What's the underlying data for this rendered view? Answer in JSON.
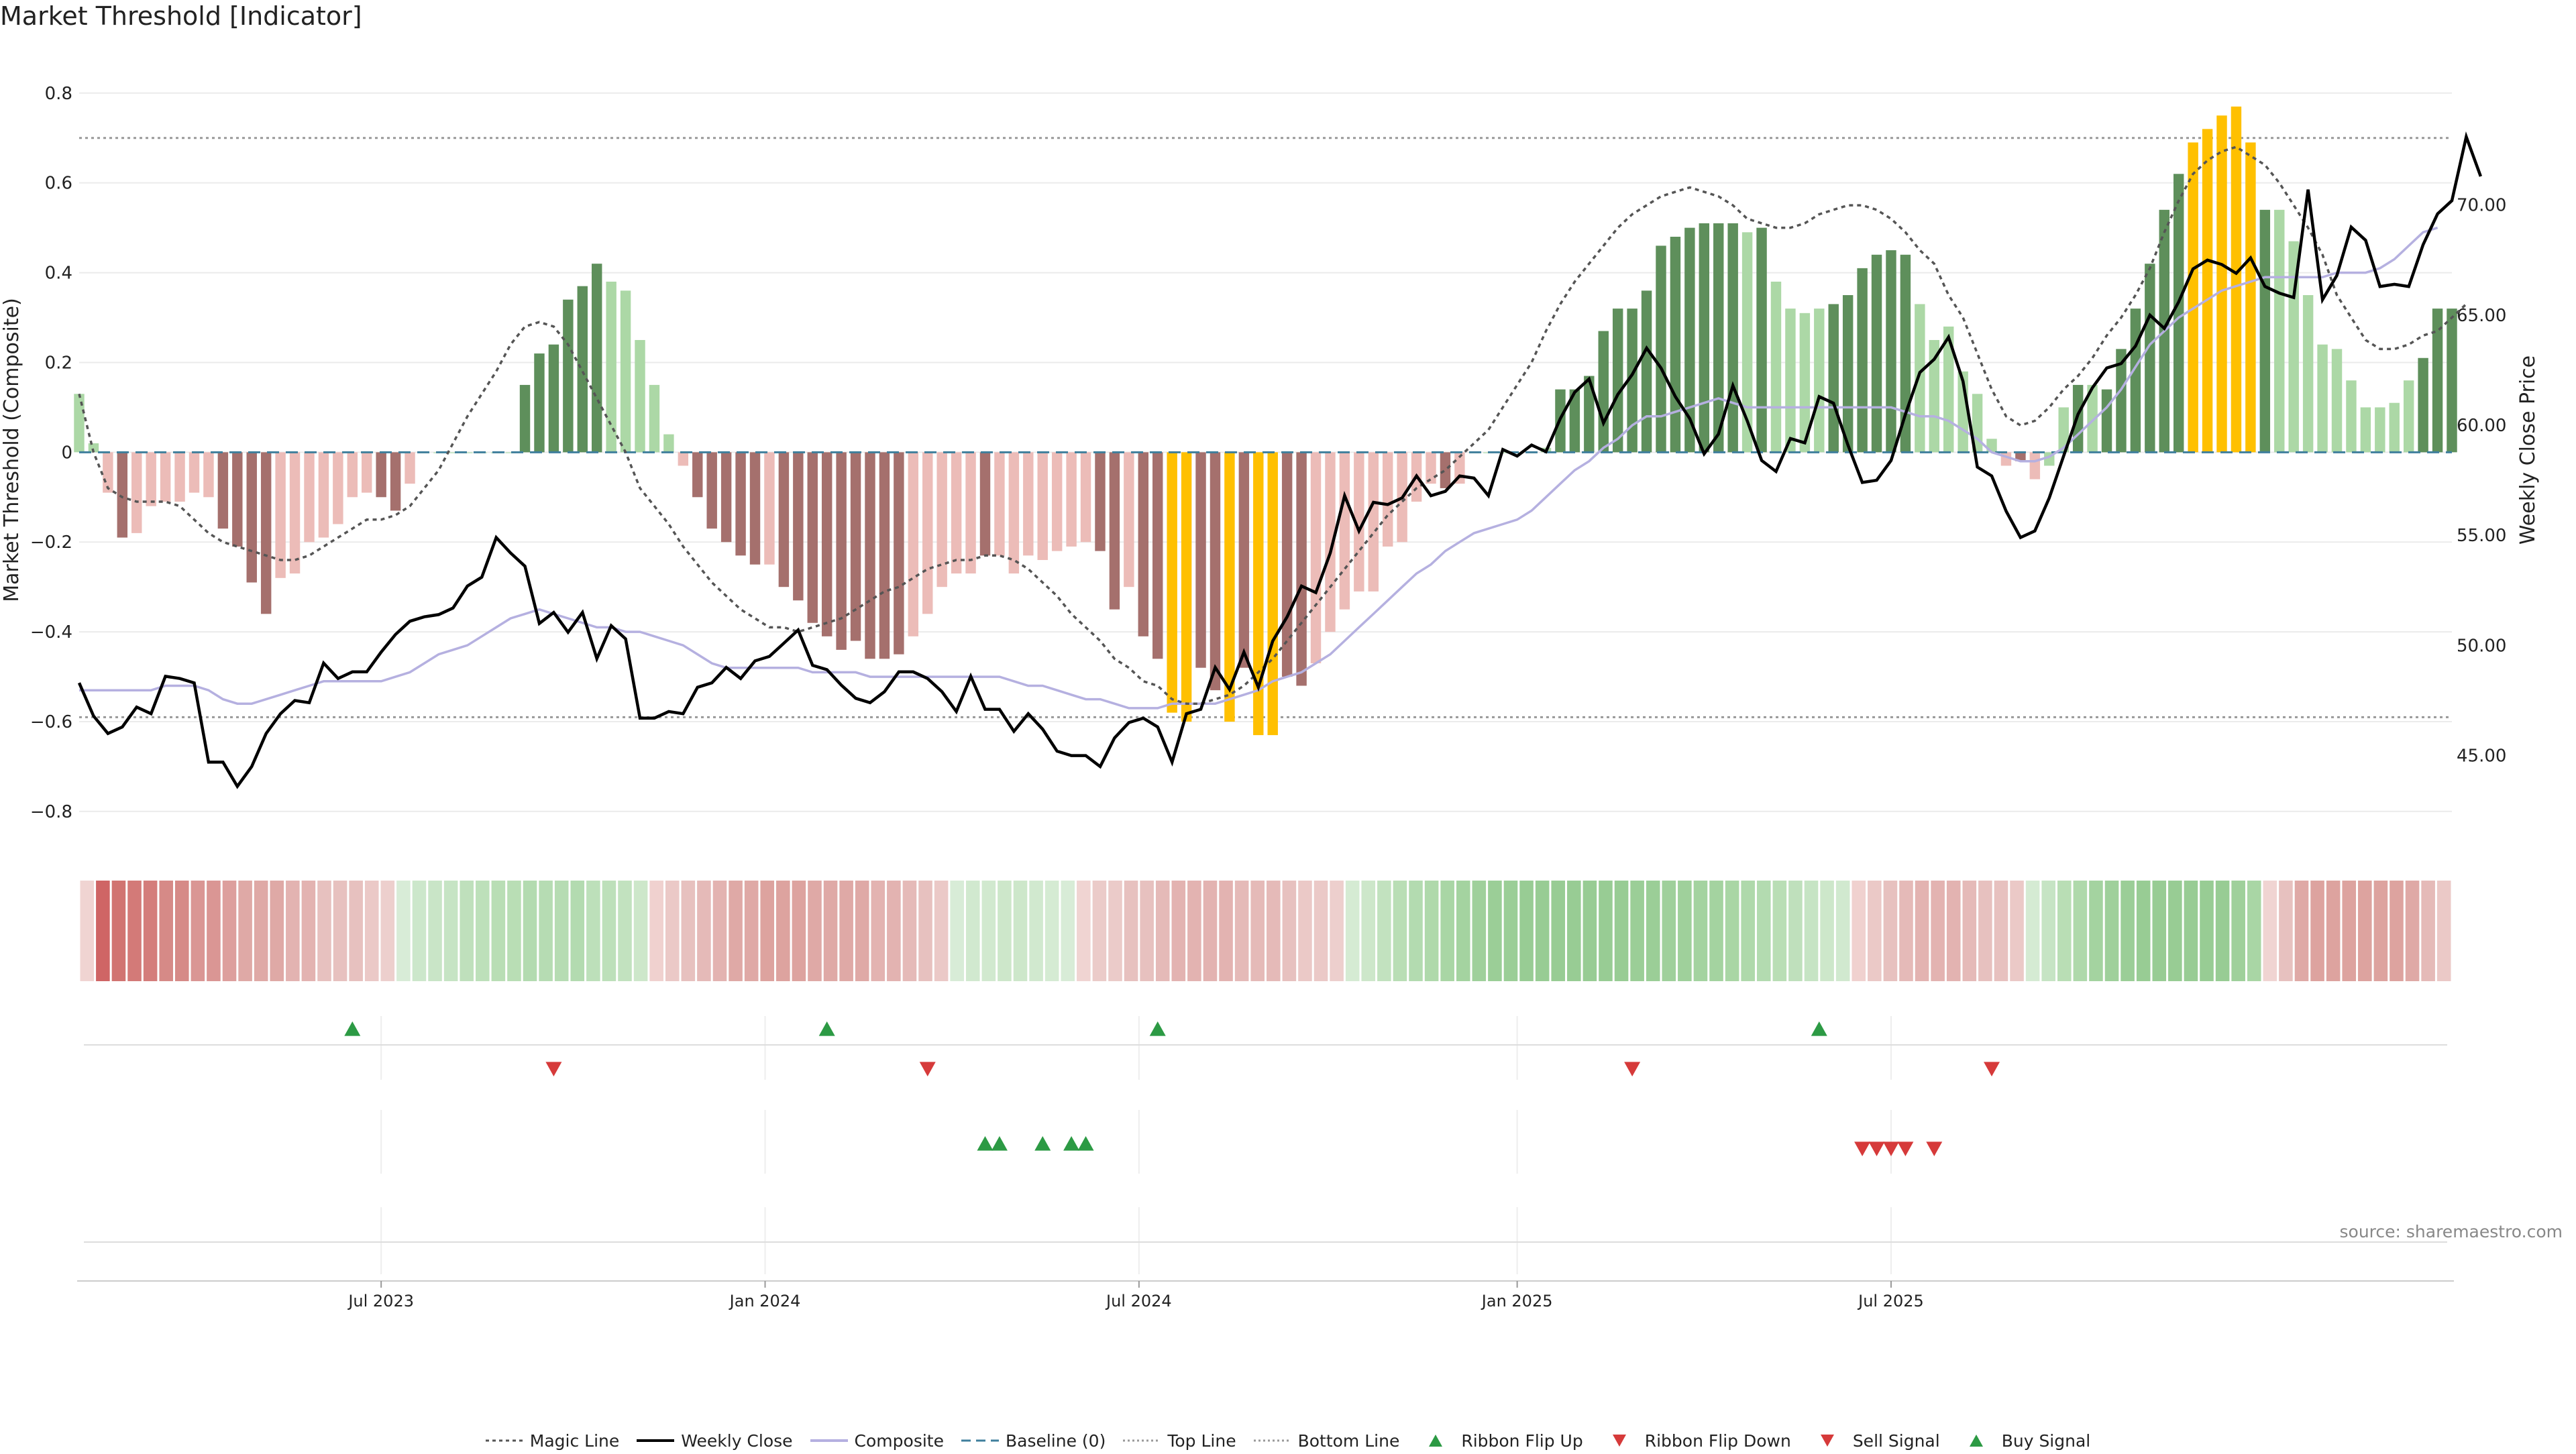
{
  "title": "Market Threshold [Indicator]",
  "source": "source: sharemaestro.com",
  "colors": {
    "magic_line": "#555555",
    "weekly_close": "#000000",
    "composite": "#b5b0e0",
    "baseline": "#3f7f9c",
    "threshold_lines": "#999999",
    "bar_dark_green": "#5e8f5b",
    "bar_light_green": "#acd8a6",
    "bar_dark_red": "#a5706d",
    "bar_light_red": "#ecbcb8",
    "bar_extreme": "#ffc000",
    "ribbon_up": "#2c9a44",
    "signal_down": "#d63a3a"
  },
  "legend": [
    {
      "label": "Magic Line",
      "icon": "dotted-line-icon"
    },
    {
      "label": "Weekly Close",
      "icon": "solid-line-icon"
    },
    {
      "label": "Composite",
      "icon": "lavender-line-icon"
    },
    {
      "label": "Baseline (0)",
      "icon": "dashed-line-icon"
    },
    {
      "label": "Top Line",
      "icon": "dotted-gray-line-icon"
    },
    {
      "label": "Bottom Line",
      "icon": "dotted-gray-line-icon"
    },
    {
      "label": "Ribbon Flip Up",
      "icon": "triangle-up-icon"
    },
    {
      "label": "Ribbon Flip Down",
      "icon": "triangle-down-icon"
    },
    {
      "label": "Sell Signal",
      "icon": "triangle-down-icon"
    },
    {
      "label": "Buy Signal",
      "icon": "triangle-up-icon"
    }
  ],
  "chart_data": {
    "type": "bar",
    "ylabel": "Market Threshold (Composite)",
    "y2label": "Weekly Close Price",
    "ylim": [
      -0.83,
      0.84
    ],
    "y2lim": [
      41.85,
      75.9
    ],
    "yticks": [
      "0.8",
      "0.6",
      "0.4",
      "0.2",
      "0",
      "−0.2",
      "−0.4",
      "−0.6",
      "−0.8"
    ],
    "y2ticks": [
      "70.00",
      "65.00",
      "60.00",
      "55.00",
      "50.00",
      "45.00"
    ],
    "xticks": [
      {
        "label": "Jul 2023",
        "week": 21
      },
      {
        "label": "Jan 2024",
        "week": 47.7
      },
      {
        "label": "Jul 2024",
        "week": 73.7
      },
      {
        "label": "Jan 2025",
        "week": 100
      },
      {
        "label": "Jul 2025",
        "week": 126
      }
    ],
    "top_line": 0.7,
    "bottom_line": -0.59,
    "bars": [
      0.13,
      0.02,
      -0.09,
      -0.19,
      -0.18,
      -0.12,
      -0.11,
      -0.11,
      -0.09,
      -0.1,
      -0.17,
      -0.21,
      -0.29,
      -0.36,
      -0.28,
      -0.27,
      -0.2,
      -0.19,
      -0.16,
      -0.1,
      -0.09,
      -0.1,
      -0.13,
      -0.07,
      0.0,
      0.0,
      0.0,
      0.0,
      0.0,
      0.0,
      0.0,
      0.15,
      0.22,
      0.24,
      0.34,
      0.37,
      0.42,
      0.38,
      0.36,
      0.25,
      0.15,
      0.04,
      -0.03,
      -0.1,
      -0.17,
      -0.2,
      -0.23,
      -0.25,
      -0.25,
      -0.3,
      -0.33,
      -0.38,
      -0.41,
      -0.44,
      -0.42,
      -0.46,
      -0.46,
      -0.45,
      -0.41,
      -0.36,
      -0.3,
      -0.27,
      -0.27,
      -0.23,
      -0.23,
      -0.27,
      -0.23,
      -0.24,
      -0.22,
      -0.21,
      -0.2,
      -0.22,
      -0.35,
      -0.3,
      -0.41,
      -0.46,
      -0.58,
      -0.6,
      -0.48,
      -0.53,
      -0.6,
      -0.48,
      -0.63,
      -0.63,
      -0.5,
      -0.52,
      -0.47,
      -0.4,
      -0.35,
      -0.31,
      -0.31,
      -0.21,
      -0.2,
      -0.11,
      -0.07,
      -0.08,
      -0.07,
      0.0,
      0.0,
      0.0,
      0.0,
      0.0,
      0.01,
      0.14,
      0.14,
      0.17,
      0.27,
      0.32,
      0.32,
      0.36,
      0.46,
      0.48,
      0.5,
      0.51,
      0.51,
      0.51,
      0.49,
      0.5,
      0.38,
      0.32,
      0.31,
      0.32,
      0.33,
      0.35,
      0.41,
      0.44,
      0.45,
      0.44,
      0.33,
      0.25,
      0.28,
      0.18,
      0.13,
      0.03,
      -0.03,
      -0.02,
      -0.06,
      -0.03,
      0.1,
      0.15,
      0.15,
      0.14,
      0.23,
      0.32,
      0.42,
      0.54,
      0.62,
      0.69,
      0.72,
      0.75,
      0.77,
      0.69,
      0.54,
      0.54,
      0.47,
      0.35,
      0.24,
      0.23,
      0.16,
      0.1,
      0.1,
      0.11,
      0.16,
      0.21,
      0.32,
      0.32
    ],
    "bar_classes": [
      "lg",
      "lg",
      "lr",
      "dr",
      "lr",
      "lr",
      "lr",
      "lr",
      "lr",
      "lr",
      "dr",
      "dr",
      "dr",
      "dr",
      "lr",
      "lr",
      "lr",
      "lr",
      "lr",
      "lr",
      "lr",
      "dr",
      "dr",
      "lr",
      "z",
      "z",
      "z",
      "z",
      "z",
      "z",
      "z",
      "dg",
      "dg",
      "dg",
      "dg",
      "dg",
      "dg",
      "lg",
      "lg",
      "lg",
      "lg",
      "lg",
      "lr",
      "dr",
      "dr",
      "dr",
      "dr",
      "dr",
      "lr",
      "dr",
      "dr",
      "dr",
      "dr",
      "dr",
      "dr",
      "dr",
      "dr",
      "dr",
      "lr",
      "lr",
      "lr",
      "lr",
      "lr",
      "dr",
      "lr",
      "lr",
      "lr",
      "lr",
      "lr",
      "lr",
      "lr",
      "dr",
      "dr",
      "lr",
      "dr",
      "dr",
      "y",
      "y",
      "dr",
      "dr",
      "y",
      "dr",
      "y",
      "y",
      "dr",
      "dr",
      "lr",
      "lr",
      "lr",
      "lr",
      "lr",
      "lr",
      "lr",
      "lr",
      "lr",
      "dr",
      "lr",
      "z",
      "z",
      "z",
      "z",
      "z",
      "lg",
      "dg",
      "dg",
      "dg",
      "dg",
      "dg",
      "dg",
      "dg",
      "dg",
      "dg",
      "dg",
      "dg",
      "dg",
      "dg",
      "lg",
      "dg",
      "lg",
      "lg",
      "lg",
      "lg",
      "dg",
      "dg",
      "dg",
      "dg",
      "dg",
      "dg",
      "lg",
      "lg",
      "lg",
      "lg",
      "lg",
      "lg",
      "lr",
      "dr",
      "lr",
      "lg",
      "lg",
      "dg",
      "lg",
      "dg",
      "dg",
      "dg",
      "dg",
      "dg",
      "dg",
      "y",
      "y",
      "y",
      "y",
      "y",
      "dg",
      "lg",
      "lg",
      "lg",
      "lg",
      "lg",
      "lg",
      "lg",
      "lg",
      "lg",
      "lg",
      "dg",
      "dg",
      "dg",
      "dg"
    ],
    "magic_line": [
      0.13,
      0.0,
      -0.08,
      -0.1,
      -0.11,
      -0.11,
      -0.11,
      -0.12,
      -0.15,
      -0.18,
      -0.2,
      -0.21,
      -0.22,
      -0.23,
      -0.24,
      -0.24,
      -0.23,
      -0.21,
      -0.19,
      -0.17,
      -0.15,
      -0.15,
      -0.14,
      -0.12,
      -0.08,
      -0.04,
      0.02,
      0.08,
      0.13,
      0.18,
      0.24,
      0.28,
      0.29,
      0.28,
      0.24,
      0.18,
      0.12,
      0.06,
      0.0,
      -0.08,
      -0.12,
      -0.16,
      -0.21,
      -0.25,
      -0.29,
      -0.32,
      -0.35,
      -0.37,
      -0.39,
      -0.39,
      -0.4,
      -0.39,
      -0.38,
      -0.37,
      -0.35,
      -0.33,
      -0.31,
      -0.3,
      -0.28,
      -0.26,
      -0.25,
      -0.24,
      -0.24,
      -0.23,
      -0.23,
      -0.24,
      -0.26,
      -0.29,
      -0.32,
      -0.36,
      -0.39,
      -0.42,
      -0.46,
      -0.48,
      -0.51,
      -0.52,
      -0.55,
      -0.56,
      -0.56,
      -0.55,
      -0.54,
      -0.52,
      -0.49,
      -0.46,
      -0.42,
      -0.38,
      -0.34,
      -0.3,
      -0.26,
      -0.22,
      -0.18,
      -0.14,
      -0.11,
      -0.08,
      -0.06,
      -0.04,
      -0.01,
      0.02,
      0.05,
      0.1,
      0.15,
      0.2,
      0.27,
      0.33,
      0.38,
      0.42,
      0.46,
      0.5,
      0.53,
      0.55,
      0.57,
      0.58,
      0.59,
      0.58,
      0.57,
      0.55,
      0.52,
      0.51,
      0.5,
      0.5,
      0.51,
      0.53,
      0.54,
      0.55,
      0.55,
      0.54,
      0.52,
      0.49,
      0.45,
      0.42,
      0.35,
      0.3,
      0.22,
      0.14,
      0.08,
      0.06,
      0.07,
      0.1,
      0.14,
      0.17,
      0.21,
      0.26,
      0.3,
      0.35,
      0.41,
      0.49,
      0.56,
      0.62,
      0.65,
      0.67,
      0.68,
      0.66,
      0.64,
      0.6,
      0.55,
      0.5,
      0.44,
      0.35,
      0.3,
      0.25,
      0.23,
      0.23,
      0.24,
      0.26,
      0.27,
      0.3,
      0.33
    ],
    "composite": [
      -0.53,
      -0.53,
      -0.53,
      -0.53,
      -0.53,
      -0.53,
      -0.52,
      -0.52,
      -0.52,
      -0.53,
      -0.55,
      -0.56,
      -0.56,
      -0.55,
      -0.54,
      -0.53,
      -0.52,
      -0.51,
      -0.51,
      -0.51,
      -0.51,
      -0.51,
      -0.5,
      -0.49,
      -0.47,
      -0.45,
      -0.44,
      -0.43,
      -0.41,
      -0.39,
      -0.37,
      -0.36,
      -0.35,
      -0.36,
      -0.37,
      -0.38,
      -0.39,
      -0.39,
      -0.4,
      -0.4,
      -0.41,
      -0.42,
      -0.43,
      -0.45,
      -0.47,
      -0.48,
      -0.48,
      -0.48,
      -0.48,
      -0.48,
      -0.48,
      -0.49,
      -0.49,
      -0.49,
      -0.49,
      -0.5,
      -0.5,
      -0.5,
      -0.5,
      -0.5,
      -0.5,
      -0.5,
      -0.5,
      -0.5,
      -0.5,
      -0.51,
      -0.52,
      -0.52,
      -0.53,
      -0.54,
      -0.55,
      -0.55,
      -0.56,
      -0.57,
      -0.57,
      -0.57,
      -0.56,
      -0.56,
      -0.56,
      -0.56,
      -0.55,
      -0.54,
      -0.53,
      -0.51,
      -0.5,
      -0.49,
      -0.47,
      -0.45,
      -0.42,
      -0.39,
      -0.36,
      -0.33,
      -0.3,
      -0.27,
      -0.25,
      -0.22,
      -0.2,
      -0.18,
      -0.17,
      -0.16,
      -0.15,
      -0.13,
      -0.1,
      -0.07,
      -0.04,
      -0.02,
      0.01,
      0.03,
      0.06,
      0.08,
      0.08,
      0.09,
      0.1,
      0.11,
      0.12,
      0.11,
      0.1,
      0.1,
      0.1,
      0.1,
      0.1,
      0.1,
      0.1,
      0.1,
      0.1,
      0.1,
      0.1,
      0.09,
      0.08,
      0.08,
      0.07,
      0.05,
      0.03,
      0.0,
      -0.01,
      -0.02,
      -0.02,
      -0.01,
      0.01,
      0.04,
      0.07,
      0.1,
      0.14,
      0.19,
      0.24,
      0.27,
      0.3,
      0.32,
      0.34,
      0.36,
      0.37,
      0.38,
      0.39,
      0.39,
      0.39,
      0.39,
      0.39,
      0.4,
      0.4,
      0.4,
      0.41,
      0.43,
      0.46,
      0.49,
      0.5
    ],
    "weekly_close": [
      48.3,
      46.8,
      46.0,
      46.3,
      47.2,
      46.9,
      48.6,
      48.5,
      48.3,
      44.7,
      44.7,
      43.6,
      44.5,
      46.0,
      46.9,
      47.5,
      47.4,
      49.2,
      48.5,
      48.8,
      48.8,
      49.7,
      50.5,
      51.1,
      51.3,
      51.4,
      51.7,
      52.7,
      53.1,
      54.9,
      54.2,
      53.6,
      51.0,
      51.5,
      50.6,
      51.5,
      49.4,
      50.9,
      50.3,
      46.7,
      46.7,
      47.0,
      46.9,
      48.1,
      48.3,
      49.0,
      48.5,
      49.3,
      49.5,
      50.1,
      50.7,
      49.1,
      48.9,
      48.2,
      47.6,
      47.4,
      47.9,
      48.8,
      48.8,
      48.5,
      47.9,
      47.0,
      48.6,
      47.1,
      47.1,
      46.1,
      46.9,
      46.2,
      45.2,
      45.0,
      45.0,
      44.5,
      45.8,
      46.5,
      46.7,
      46.3,
      44.7,
      46.9,
      47.1,
      49.0,
      48.0,
      49.7,
      48.1,
      50.2,
      51.3,
      52.7,
      52.4,
      54.2,
      56.8,
      55.2,
      56.5,
      56.4,
      56.7,
      57.7,
      56.8,
      57.0,
      57.7,
      57.6,
      56.8,
      58.9,
      58.6,
      59.1,
      58.8,
      60.3,
      61.5,
      62.1,
      60.1,
      61.4,
      62.3,
      63.5,
      62.6,
      61.3,
      60.3,
      58.7,
      59.6,
      61.8,
      60.2,
      58.4,
      57.9,
      59.4,
      59.2,
      61.3,
      61.0,
      59.1,
      57.4,
      57.5,
      58.4,
      60.5,
      62.4,
      63.0,
      64.0,
      62.0,
      58.1,
      57.7,
      56.1,
      54.9,
      55.2,
      56.7,
      58.6,
      60.5,
      61.7,
      62.6,
      62.8,
      63.6,
      65.0,
      64.4,
      65.6,
      67.1,
      67.5,
      67.3,
      66.9,
      67.6,
      66.3,
      66.0,
      65.8,
      70.7,
      65.7,
      66.8,
      69.0,
      68.4,
      66.3,
      66.4,
      66.3,
      68.2,
      69.6,
      70.2,
      73.1,
      71.3
    ],
    "ribbon_colors": [
      "#f0d4d2",
      "#cf6565",
      "#d17471",
      "#d37a78",
      "#d47d7b",
      "#d68a87",
      "#d68a87",
      "#da9694",
      "#da9694",
      "#dd9f9d",
      "#dfa9a6",
      "#dfa9a6",
      "#dfa9a6",
      "#e3b3b1",
      "#e3b3b1",
      "#e7c1bf",
      "#e7c1bf",
      "#e7c1bf",
      "#ebc9c7",
      "#edcfcd",
      "#d8ecd7",
      "#cce7cb",
      "#c9e5c7",
      "#c6e4c4",
      "#bfe0bc",
      "#bde0ba",
      "#b9deb5",
      "#b9deb5",
      "#b3dbb0",
      "#b6dcb3",
      "#b6dcb3",
      "#b3dbb0",
      "#bde0ba",
      "#bde0ba",
      "#c2e2bf",
      "#cde7ca",
      "#f0d1cf",
      "#ebc9c7",
      "#e7c1bf",
      "#e5bab8",
      "#e3b3b1",
      "#dfa9a6",
      "#dfa9a6",
      "#dda39f",
      "#dda39f",
      "#dda39f",
      "#dfa9a6",
      "#dfa9a6",
      "#dfa9a6",
      "#dfa9a6",
      "#e3b3b1",
      "#e3b3b1",
      "#e5bab8",
      "#e7c1bf",
      "#ebc9c7",
      "#d8ecd7",
      "#d1e9cf",
      "#d1e9cf",
      "#cde7ca",
      "#cde7ca",
      "#d1e9cf",
      "#d5ebd3",
      "#d8ecd7",
      "#f0d4d2",
      "#ebcbc9",
      "#ebcbc9",
      "#e7c1bf",
      "#e7c1bf",
      "#e5bab8",
      "#e3b3b1",
      "#e3b3b1",
      "#e3b3b1",
      "#e3b3b1",
      "#e5bab8",
      "#e5bab8",
      "#e5bab8",
      "#e7c1bf",
      "#ebc9c7",
      "#ebc9c7",
      "#edcfcd",
      "#d5ebd3",
      "#cde7ca",
      "#c2e2bf",
      "#b9deb5",
      "#b3dbb0",
      "#afd9ab",
      "#a9d6a5",
      "#a4d3a0",
      "#9fd09b",
      "#9bce97",
      "#9bce97",
      "#98cc94",
      "#98cc94",
      "#98cc94",
      "#98cc94",
      "#98cc94",
      "#98cc94",
      "#98cc94",
      "#9bce97",
      "#9bce97",
      "#9fd09b",
      "#9fd09b",
      "#a4d3a0",
      "#a4d3a0",
      "#a9d6a5",
      "#afd9ab",
      "#b3dbb0",
      "#b9deb5",
      "#bfe0bc",
      "#c6e4c4",
      "#cde7ca",
      "#d1e9cf",
      "#f0d1cf",
      "#ebc9c7",
      "#e7c1bf",
      "#e5bab8",
      "#e3b3b1",
      "#e3b3b1",
      "#e3b3b1",
      "#e5bab8",
      "#e7c1bf",
      "#e7c1bf",
      "#ebc9c7",
      "#d5ebd3",
      "#c6e4c4",
      "#b9deb5",
      "#afd9ab",
      "#a4d3a0",
      "#9fd09b",
      "#9bce97",
      "#98cc94",
      "#98cc94",
      "#98cc94",
      "#98cc94",
      "#98cc94",
      "#98cc94",
      "#9fd09b",
      "#a9d6a5",
      "#f0d4d2",
      "#e7c1bf",
      "#dfa9a6",
      "#dda39f",
      "#dda39f",
      "#dda39f",
      "#dda39f",
      "#dda39f",
      "#dda39f",
      "#dfa9a6",
      "#e5bab8",
      "#ebc9c7"
    ],
    "ribbon_flip_up": [
      19,
      52,
      75,
      121
    ],
    "ribbon_flip_down": [
      33,
      59,
      108,
      133
    ],
    "buy_signals": [
      63,
      64,
      67,
      69,
      70
    ],
    "sell_signals": [
      124,
      125,
      126,
      127,
      129
    ]
  }
}
